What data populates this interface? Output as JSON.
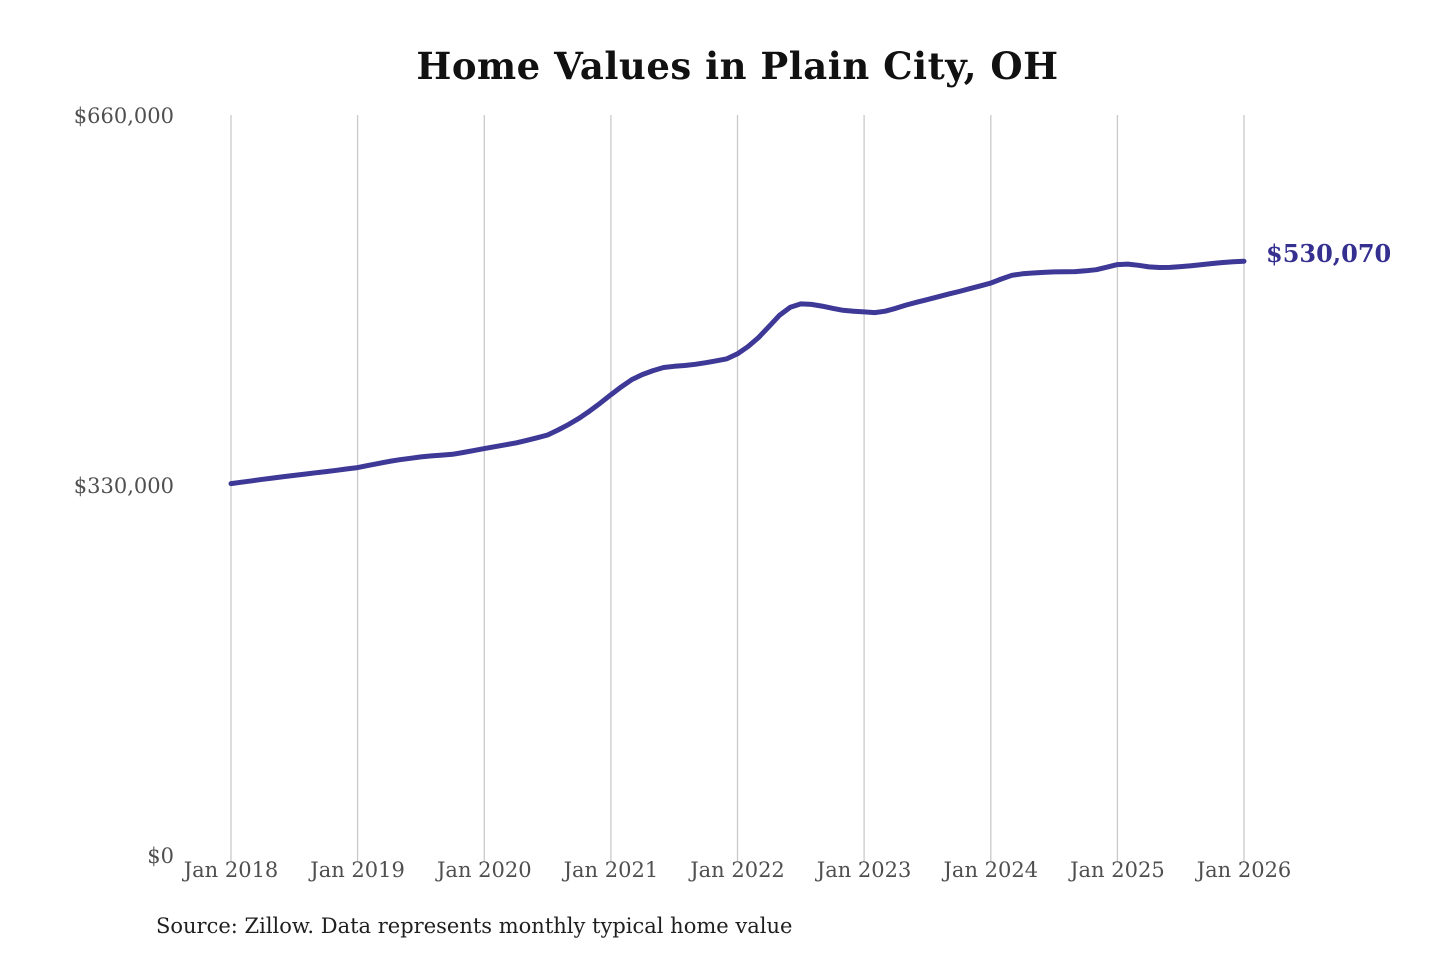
{
  "chart": {
    "title": "Home Values in Plain City, OH",
    "end_label": "$530,070",
    "source": "Source: Zillow. Data represents monthly typical home value",
    "colors": {
      "line": "#3e3897",
      "annotation": "#35308f",
      "grid": "#c9c9c9",
      "tick_text": "#4f4f4f",
      "title_text": "#111111"
    }
  },
  "chart_data": {
    "type": "line",
    "title": "Home Values in Plain City, OH",
    "interval": "monthly",
    "x_tick_labels": [
      "Jan 2018",
      "Jan 2019",
      "Jan 2020",
      "Jan 2021",
      "Jan 2022",
      "Jan 2023",
      "Jan 2024",
      "Jan 2025",
      "Jan 2026"
    ],
    "y_tick_labels": [
      "$0",
      "$330,000",
      "$660,000"
    ],
    "y_tick_values": [
      0,
      330000,
      660000
    ],
    "ylim": [
      0,
      660000
    ],
    "grid": "vertical-only",
    "legend": "none",
    "end_value": 530070,
    "end_value_label": "$530,070",
    "series": [
      {
        "name": "Monthly typical home value",
        "start_month": "Jan 2018",
        "end_month": "Jan 2026",
        "values": [
          331700,
          332900,
          334200,
          335500,
          336700,
          337900,
          339000,
          340200,
          341300,
          342400,
          343600,
          344800,
          346000,
          347900,
          349700,
          351500,
          353000,
          354300,
          355500,
          356400,
          357100,
          357800,
          359400,
          361100,
          362900,
          364600,
          366300,
          368000,
          370200,
          372500,
          375000,
          379500,
          384500,
          390000,
          396500,
          403500,
          411000,
          418000,
          424500,
          429000,
          432500,
          435200,
          436300,
          437000,
          438100,
          439500,
          441200,
          443000,
          447500,
          454000,
          462000,
          472000,
          482000,
          489000,
          492000,
          491500,
          490000,
          488000,
          486300,
          485500,
          484800,
          484200,
          485500,
          488000,
          491000,
          493500,
          495800,
          498300,
          500700,
          503000,
          505500,
          508000,
          510500,
          514200,
          517500,
          518800,
          519500,
          520100,
          520500,
          520700,
          520800,
          521500,
          522500,
          524700,
          527000,
          527500,
          526400,
          525000,
          524400,
          524500,
          525200,
          526000,
          527000,
          528000,
          528900,
          529500,
          530070
        ]
      }
    ]
  }
}
